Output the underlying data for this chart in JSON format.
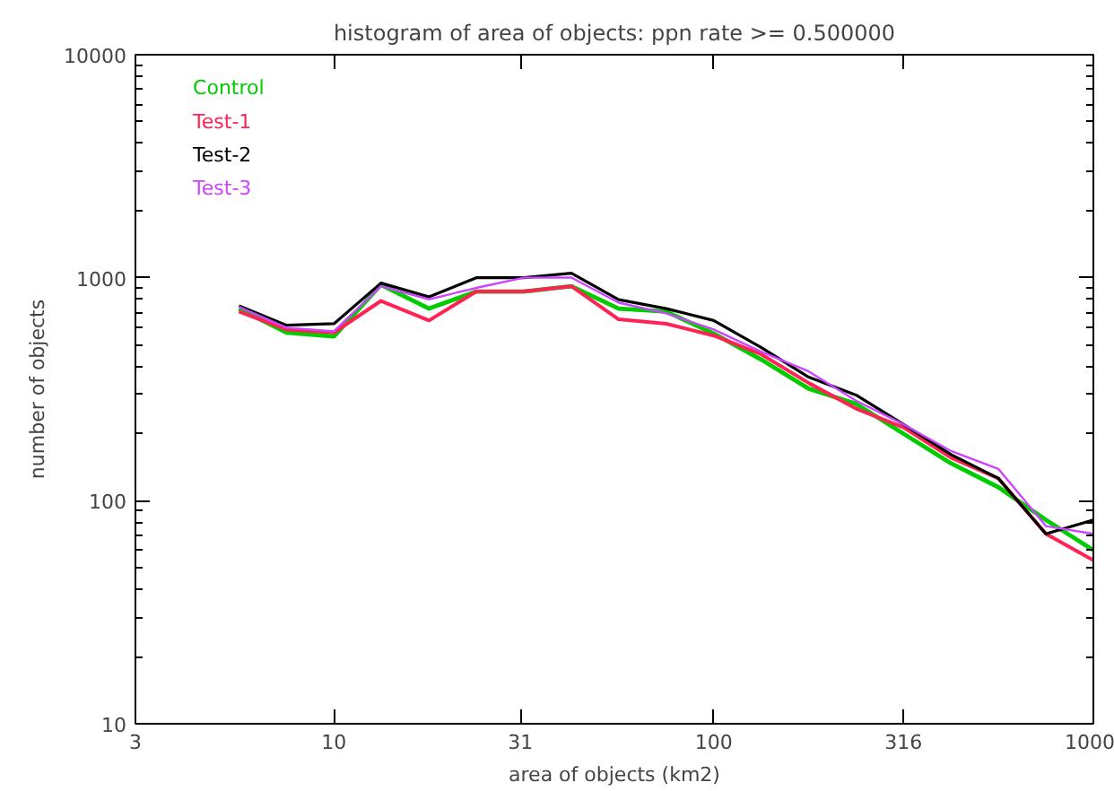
{
  "chart_data": {
    "type": "line",
    "title": "histogram of area of objects: ppn rate >= 0.500000",
    "xlabel": "area of objects (km2)",
    "ylabel": "number of objects",
    "log": "xy",
    "grid": false,
    "legend": "top left",
    "marker": "none",
    "line_style": "solid",
    "x": [
      5.62,
      7.5,
      10,
      13.3,
      17.8,
      23.7,
      31.6,
      42.2,
      56.2,
      75,
      100,
      133,
      178,
      237,
      316,
      422,
      562,
      750,
      1000
    ],
    "xlim": [
      3,
      1000
    ],
    "xticks": [
      3,
      10,
      31,
      100,
      316,
      1000
    ],
    "ylim": [
      10,
      10000
    ],
    "yticks": [
      10,
      100,
      1000,
      10000
    ],
    "series": [
      {
        "name": "Control",
        "color": "#00cc00",
        "values": [
          725,
          568,
          545,
          930,
          727,
          867,
          867,
          916,
          727,
          705,
          562,
          431,
          318,
          272,
          200,
          147,
          115,
          82,
          60
        ]
      },
      {
        "name": "Test-1",
        "color": "#ff2255",
        "values": [
          705,
          586,
          568,
          787,
          643,
          867,
          867,
          916,
          651,
          622,
          550,
          455,
          337,
          259,
          213,
          156,
          126,
          71,
          54
        ]
      },
      {
        "name": "Test-2",
        "color": "#000000",
        "values": [
          748,
          612,
          622,
          946,
          820,
          1000,
          1000,
          1047,
          797,
          727,
          643,
          488,
          358,
          298,
          220,
          161,
          126,
          71,
          82
        ]
      },
      {
        "name": "Test-3",
        "color": "#cc44ff",
        "values": [
          740,
          597,
          575,
          916,
          800,
          900,
          1000,
          1002,
          773,
          692,
          586,
          467,
          380,
          281,
          220,
          167,
          139,
          77,
          71
        ]
      }
    ]
  }
}
